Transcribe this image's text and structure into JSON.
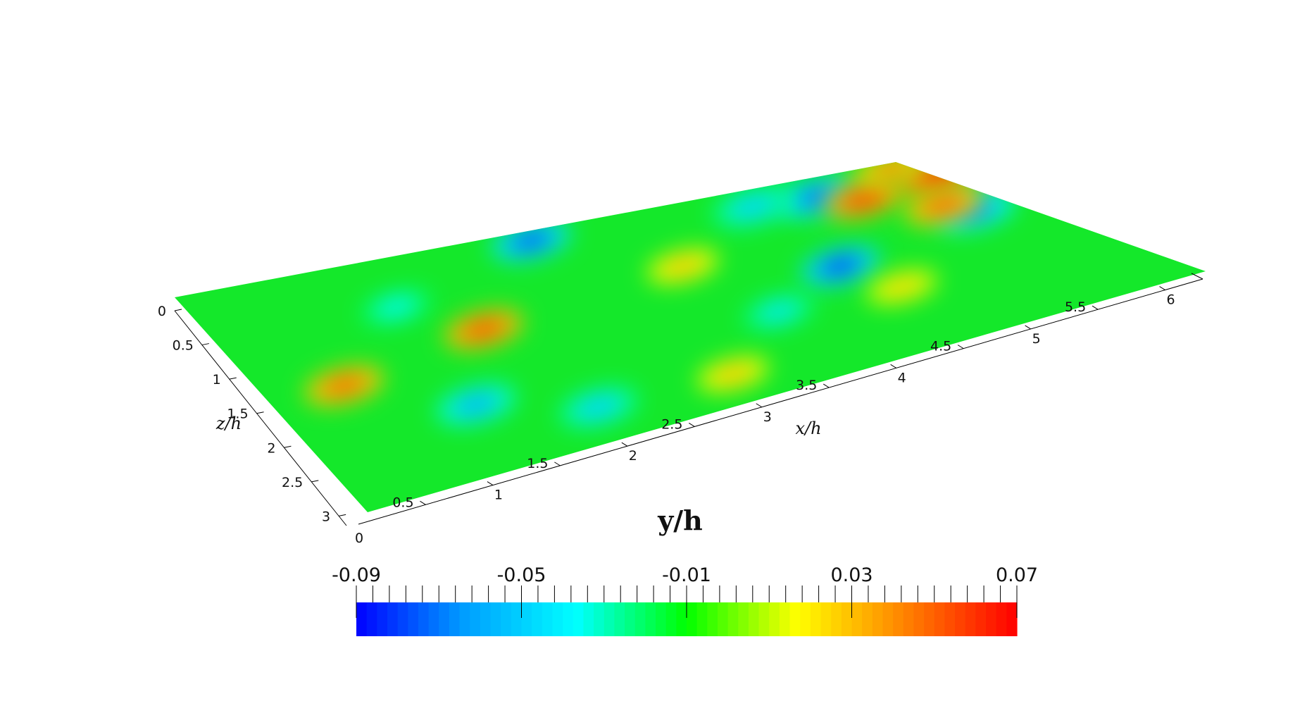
{
  "chart_data": {
    "type": "heatmap",
    "title": "",
    "x_axis": {
      "label": "x/h",
      "ticks": [
        "0.5",
        "1",
        "1.5",
        "2",
        "2.5",
        "3",
        "3.5",
        "4",
        "4.5",
        "5",
        "5.5",
        "6"
      ],
      "origin_label": "0",
      "range": [
        0,
        6.28
      ]
    },
    "z_axis": {
      "label": "z/h",
      "ticks": [
        "0",
        "0.5",
        "1",
        "1.5",
        "2",
        "2.5",
        "3"
      ],
      "range": [
        0,
        3.14
      ]
    },
    "colorbar": {
      "title": "y/h",
      "tick_labels": [
        "-0.09",
        "-0.05",
        "-0.01",
        "0.03",
        "0.07"
      ],
      "range": [
        -0.09,
        0.07
      ],
      "colors": [
        "#0000ff",
        "#00a0ff",
        "#00ffff",
        "#00ff00",
        "#ffff00",
        "#ff8000",
        "#ff0000"
      ]
    },
    "field_features": [
      {
        "x": 3.0,
        "z": 0.15,
        "value": -0.08
      },
      {
        "x": 5.3,
        "z": 0.35,
        "value": -0.075
      },
      {
        "x": 4.6,
        "z": 1.55,
        "value": -0.085
      },
      {
        "x": 1.3,
        "z": 2.2,
        "value": -0.06
      },
      {
        "x": 2.0,
        "z": 2.65,
        "value": -0.05
      },
      {
        "x": 6.0,
        "z": 1.15,
        "value": -0.07
      },
      {
        "x": 3.8,
        "z": 2.0,
        "value": -0.045
      },
      {
        "x": 4.8,
        "z": 0.3,
        "value": -0.05
      },
      {
        "x": 1.5,
        "z": 0.7,
        "value": -0.04
      },
      {
        "x": 1.9,
        "z": 1.25,
        "value": 0.055
      },
      {
        "x": 0.6,
        "z": 1.55,
        "value": 0.05
      },
      {
        "x": 5.55,
        "z": 0.55,
        "value": 0.06
      },
      {
        "x": 6.3,
        "z": 0.4,
        "value": 0.07
      },
      {
        "x": 5.9,
        "z": 0.95,
        "value": 0.05
      },
      {
        "x": 6.15,
        "z": 0.1,
        "value": 0.045
      },
      {
        "x": 3.7,
        "z": 1.0,
        "value": 0.03
      },
      {
        "x": 3.0,
        "z": 2.7,
        "value": 0.03
      },
      {
        "x": 4.7,
        "z": 2.1,
        "value": 0.025
      }
    ]
  }
}
